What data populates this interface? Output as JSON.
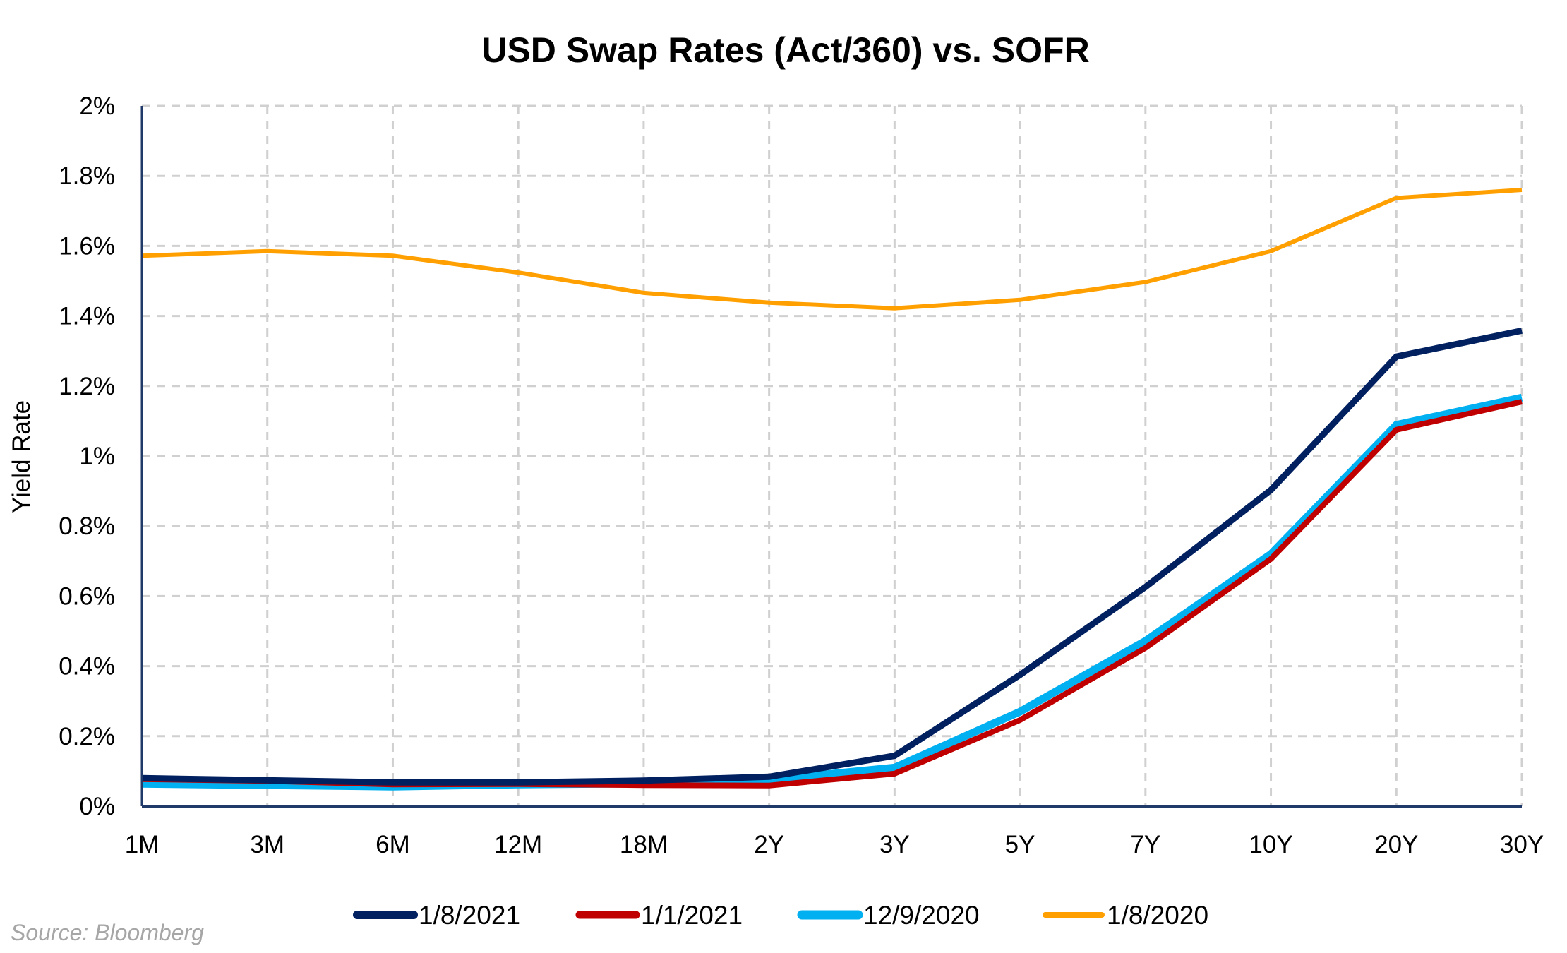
{
  "chart_data": {
    "type": "line",
    "title": "USD Swap Rates (Act/360) vs. SOFR",
    "xlabel": "",
    "ylabel": "Yield Rate",
    "ylim": [
      0,
      2
    ],
    "y_ticks": [
      0,
      0.2,
      0.4,
      0.6,
      0.8,
      1,
      1.2,
      1.4,
      1.6,
      1.8,
      2
    ],
    "y_tick_labels": [
      "0%",
      "0.2%",
      "0.4%",
      "0.6%",
      "0.8%",
      "1%",
      "1.2%",
      "1.4%",
      "1.6%",
      "1.8%",
      "2%"
    ],
    "grid": true,
    "legend_position": "bottom",
    "categories": [
      "1M",
      "3M",
      "6M",
      "12M",
      "18M",
      "2Y",
      "3Y",
      "5Y",
      "7Y",
      "10Y",
      "20Y",
      "30Y"
    ],
    "series": [
      {
        "name": "1/8/2021",
        "color": "#002060",
        "values": [
          0.08,
          0.074,
          0.068,
          0.068,
          0.073,
          0.084,
          0.144,
          0.375,
          0.626,
          0.903,
          1.284,
          1.358
        ]
      },
      {
        "name": "1/1/2021",
        "color": "#c00000",
        "values": [
          0.077,
          0.072,
          0.062,
          0.063,
          0.06,
          0.059,
          0.093,
          0.246,
          0.452,
          0.706,
          1.075,
          1.155
        ]
      },
      {
        "name": "12/9/2020",
        "color": "#00b0f0",
        "values": [
          0.064,
          0.06,
          0.056,
          0.062,
          0.065,
          0.075,
          0.11,
          0.27,
          0.472,
          0.72,
          1.089,
          1.167
        ]
      },
      {
        "name": "1/8/2020",
        "color": "#ffa000",
        "values": [
          1.572,
          1.585,
          1.572,
          1.524,
          1.466,
          1.438,
          1.422,
          1.446,
          1.497,
          1.585,
          1.737,
          1.76
        ]
      }
    ],
    "source": "Source: Bloomberg"
  },
  "colors": {
    "grid": "#d0d0d0",
    "axis": "#1f3a68",
    "source_text": "#a6a6a6"
  }
}
